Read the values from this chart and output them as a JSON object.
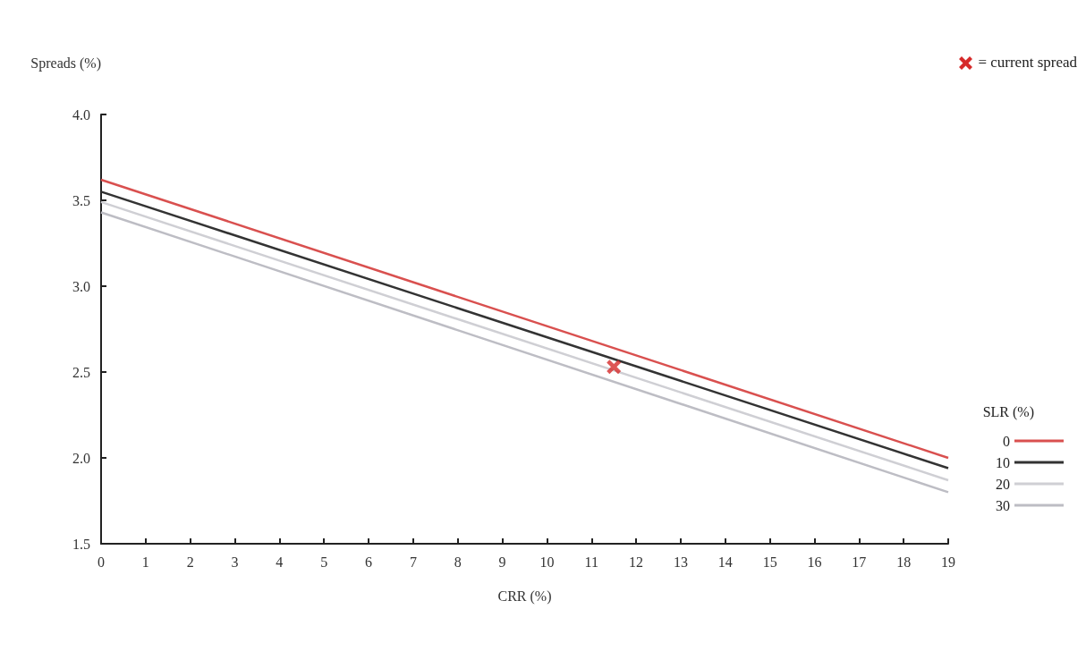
{
  "chart_data": {
    "type": "line",
    "xlabel": "CRR (%)",
    "ylabel": "Spreads (%)",
    "legend_title": "SLR (%)",
    "xlim": [
      0,
      19
    ],
    "xticks": [
      0,
      1,
      2,
      3,
      4,
      5,
      6,
      7,
      8,
      9,
      10,
      11,
      12,
      13,
      14,
      15,
      16,
      17,
      18,
      19
    ],
    "ylim": [
      1.5,
      4.0
    ],
    "yticks": [
      {
        "value": 1.5,
        "label": "1.5"
      },
      {
        "value": 2,
        "label": "2.0"
      },
      {
        "value": 2.5,
        "label": "2.5"
      },
      {
        "value": 3,
        "label": "3.0"
      },
      {
        "value": 3.5,
        "label": "3.5"
      },
      {
        "value": 4,
        "label": "4.0"
      }
    ],
    "annotations": [
      "= current spread"
    ],
    "grid": false,
    "legend": "right",
    "marker": "none",
    "line_style": "solid",
    "series": [
      {
        "name": "0",
        "color": "#d9504f",
        "x": [
          0,
          19
        ],
        "values": [
          3.62,
          2.0
        ]
      },
      {
        "name": "10",
        "color": "#333333",
        "x": [
          0,
          19
        ],
        "values": [
          3.55,
          1.94
        ]
      },
      {
        "name": "20",
        "color": "#cfcfd4",
        "x": [
          0,
          19
        ],
        "values": [
          3.49,
          1.87
        ]
      },
      {
        "name": "30",
        "color": "#bdbdc4",
        "x": [
          0,
          19
        ],
        "values": [
          3.43,
          1.8
        ]
      },
      {
        "type": "scatter",
        "marker": "cross",
        "color": "#d62a2a",
        "x": [
          11.5
        ],
        "values": [
          2.53
        ]
      }
    ]
  }
}
